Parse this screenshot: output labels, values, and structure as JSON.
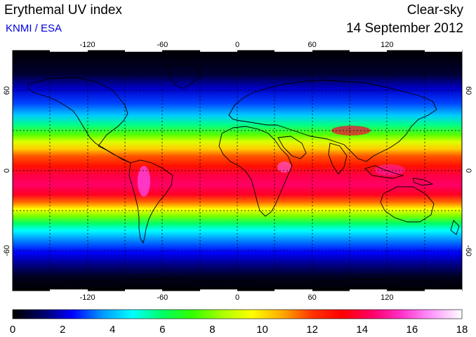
{
  "header": {
    "title": "Erythemal UV index",
    "credit": "KNMI / ESA",
    "mode": "Clear-sky",
    "date": "14 September 2012"
  },
  "map": {
    "projection": "equirectangular",
    "lon_ticks": [
      "-120",
      "-60",
      "0",
      "60",
      "120"
    ],
    "lat_ticks": [
      "60",
      "0",
      "-60"
    ],
    "gridlines": "dotted every 30 degrees"
  },
  "colorbar": {
    "ticks": [
      "0",
      "2",
      "4",
      "6",
      "8",
      "10",
      "12",
      "14",
      "16",
      "18"
    ],
    "colors": [
      "#000000",
      "#000066",
      "#0000ff",
      "#0099ff",
      "#00ffff",
      "#00ff66",
      "#33ff00",
      "#aaff00",
      "#ffff00",
      "#ffaa00",
      "#ff3300",
      "#ff0000",
      "#ff0066",
      "#ff33cc",
      "#ff99ff",
      "#ffffff"
    ]
  }
}
